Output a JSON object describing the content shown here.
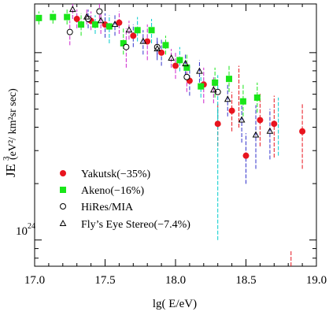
{
  "chart_data": {
    "type": "scatter",
    "title": "",
    "xlabel": "lg( E/eV)",
    "ylabel_main": "JE",
    "ylabel_sup": "3",
    "ylabel_units": "(eV²/ km²sr sec)",
    "y_tick_label": "10",
    "y_tick_label_sup": "24",
    "xlim": [
      17.0,
      19.0
    ],
    "ylim_log10": [
      23.86,
      25.26
    ],
    "yscale": "log",
    "x_ticks": [
      17.0,
      17.5,
      18.0,
      18.5,
      19.0
    ],
    "x_tick_labels": [
      "17.0",
      "17.5",
      "18.0",
      "18.5",
      "19.0"
    ],
    "legend_position": "lower-left",
    "legend": [
      {
        "label": "Yakutsk(−35%)",
        "marker": "filled-circle",
        "color": "#e8141e"
      },
      {
        "label": "Akeno(−16%)",
        "marker": "filled-square",
        "color": "#19e619"
      },
      {
        "label": "HiRes/MIA",
        "marker": "open-circle",
        "color": "#000000"
      },
      {
        "label": "Fly’s Eye Stereo(−7.4%)",
        "marker": "open-triangle",
        "color": "#000000"
      }
    ],
    "series": [
      {
        "name": "Yakutsk(−35%)",
        "marker": "filled-circle",
        "color": "#e8141e",
        "points": [
          {
            "x": 17.3,
            "y": 25.18,
            "lo": 25.13,
            "hi": 25.23,
            "ecolor": "#cc22cc"
          },
          {
            "x": 17.4,
            "y": 25.17,
            "lo": 25.12,
            "hi": 25.22,
            "ecolor": "#cc22cc"
          },
          {
            "x": 17.5,
            "y": 25.15,
            "lo": 25.08,
            "hi": 25.21,
            "ecolor": "#3333cc"
          },
          {
            "x": 17.6,
            "y": 25.16,
            "lo": 25.1,
            "hi": 25.22,
            "ecolor": "#cc22cc"
          },
          {
            "x": 17.7,
            "y": 25.09,
            "lo": 25.03,
            "hi": 25.15,
            "ecolor": "#3333cc"
          },
          {
            "x": 17.8,
            "y": 25.06,
            "lo": 24.96,
            "hi": 25.15,
            "ecolor": "#cc22cc"
          },
          {
            "x": 17.9,
            "y": 25.0,
            "lo": 24.93,
            "hi": 25.07,
            "ecolor": "#3333cc"
          },
          {
            "x": 18.0,
            "y": 24.93,
            "lo": 24.86,
            "hi": 25.0,
            "ecolor": "#cc22cc"
          },
          {
            "x": 18.1,
            "y": 24.85,
            "lo": 24.77,
            "hi": 24.93,
            "ecolor": "#3333cc"
          },
          {
            "x": 18.2,
            "y": 24.83,
            "lo": 24.73,
            "hi": 24.92,
            "ecolor": "#cc22cc"
          },
          {
            "x": 18.3,
            "y": 24.62,
            "lo": 24.5,
            "hi": 24.73,
            "ecolor": "#e8141e"
          },
          {
            "x": 18.4,
            "y": 24.69,
            "lo": 24.58,
            "hi": 24.79,
            "ecolor": "#e8141e"
          },
          {
            "x": 18.5,
            "y": 24.45,
            "lo": 24.3,
            "hi": 24.57,
            "ecolor": "#3333cc"
          },
          {
            "x": 18.6,
            "y": 24.64,
            "lo": 24.5,
            "hi": 24.78,
            "ecolor": "#e8141e"
          },
          {
            "x": 18.7,
            "y": 24.62,
            "lo": 24.44,
            "hi": 24.77,
            "ecolor": "#e8141e"
          },
          {
            "x": 18.9,
            "y": 24.58,
            "lo": 24.38,
            "hi": 24.73,
            "ecolor": "#e8141e"
          }
        ]
      },
      {
        "name": "Akeno(−16%)",
        "marker": "filled-square",
        "color": "#19e619",
        "points": [
          {
            "x": 17.03,
            "y": 25.185,
            "lo": 25.15,
            "hi": 25.22,
            "ecolor": "#19e619"
          },
          {
            "x": 17.13,
            "y": 25.19,
            "lo": 25.155,
            "hi": 25.225,
            "ecolor": "#19e619"
          },
          {
            "x": 17.23,
            "y": 25.19,
            "lo": 25.15,
            "hi": 25.23,
            "ecolor": "#19e619"
          },
          {
            "x": 17.33,
            "y": 25.15,
            "lo": 25.09,
            "hi": 25.21,
            "ecolor": "#19e619"
          },
          {
            "x": 17.43,
            "y": 25.15,
            "lo": 25.1,
            "hi": 25.2,
            "ecolor": "#00cccc"
          },
          {
            "x": 17.53,
            "y": 25.14,
            "lo": 25.05,
            "hi": 25.2,
            "ecolor": "#00cccc"
          },
          {
            "x": 17.63,
            "y": 25.05,
            "lo": 24.99,
            "hi": 25.13,
            "ecolor": "#19e619"
          },
          {
            "x": 17.73,
            "y": 25.12,
            "lo": 25.06,
            "hi": 25.19,
            "ecolor": "#00cccc"
          },
          {
            "x": 17.83,
            "y": 25.12,
            "lo": 25.05,
            "hi": 25.18,
            "ecolor": "#00cccc"
          },
          {
            "x": 17.93,
            "y": 25.04,
            "lo": 24.99,
            "hi": 25.09,
            "ecolor": "#19e619"
          },
          {
            "x": 18.03,
            "y": 24.96,
            "lo": 24.9,
            "hi": 25.03,
            "ecolor": "#00cccc"
          },
          {
            "x": 18.08,
            "y": 24.92,
            "lo": 24.85,
            "hi": 24.99,
            "ecolor": "#19e619"
          },
          {
            "x": 18.18,
            "y": 24.82,
            "lo": 24.76,
            "hi": 24.88,
            "ecolor": "#00cccc"
          },
          {
            "x": 18.28,
            "y": 24.84,
            "lo": 24.76,
            "hi": 24.92,
            "ecolor": "#19e619"
          },
          {
            "x": 18.38,
            "y": 24.86,
            "lo": 24.79,
            "hi": 24.93,
            "ecolor": "#19e619"
          },
          {
            "x": 18.48,
            "y": 24.74,
            "lo": 24.66,
            "hi": 24.83,
            "ecolor": "#19e619"
          },
          {
            "x": 18.58,
            "y": 24.76,
            "lo": 24.68,
            "hi": 24.84,
            "ecolor": "#19e619"
          }
        ]
      },
      {
        "name": "HiRes/MIA",
        "marker": "open-circle",
        "color": "#000000",
        "points": [
          {
            "x": 17.25,
            "y": 25.11,
            "lo": 25.04,
            "hi": 25.17,
            "ecolor": "#cc22cc"
          },
          {
            "x": 17.38,
            "y": 25.18,
            "lo": 25.13,
            "hi": 25.23,
            "ecolor": "#3333cc"
          },
          {
            "x": 17.46,
            "y": 25.22,
            "lo": 25.18,
            "hi": 25.26,
            "ecolor": "#cc22cc"
          },
          {
            "x": 17.65,
            "y": 25.03,
            "lo": 24.92,
            "hi": 25.13,
            "ecolor": "#cc22cc"
          },
          {
            "x": 17.87,
            "y": 25.03,
            "lo": 24.98,
            "hi": 25.08,
            "ecolor": "#3333cc"
          },
          {
            "x": 18.08,
            "y": 24.87,
            "lo": 24.79,
            "hi": 24.95,
            "ecolor": "#cc22cc"
          },
          {
            "x": 18.3,
            "y": 24.79,
            "lo": 24.6,
            "hi": 24.88,
            "ecolor": "#00cccc"
          }
        ]
      },
      {
        "name": "Fly’s Eye Stereo(−7.4%)",
        "marker": "open-triangle",
        "color": "#000000",
        "points": [
          {
            "x": 17.27,
            "y": 25.23,
            "lo": 25.18,
            "hi": 25.26,
            "ecolor": "#cc22cc"
          },
          {
            "x": 17.37,
            "y": 25.19,
            "lo": 25.15,
            "hi": 25.23,
            "ecolor": "#cc22cc"
          },
          {
            "x": 17.47,
            "y": 25.17,
            "lo": 25.1,
            "hi": 25.23,
            "ecolor": "#cc22cc"
          },
          {
            "x": 17.57,
            "y": 25.15,
            "lo": 25.09,
            "hi": 25.2,
            "ecolor": "#3333cc"
          },
          {
            "x": 17.67,
            "y": 25.12,
            "lo": 25.07,
            "hi": 25.17,
            "ecolor": "#cc22cc"
          },
          {
            "x": 17.77,
            "y": 25.06,
            "lo": 24.99,
            "hi": 25.12,
            "ecolor": "#3333cc"
          },
          {
            "x": 17.87,
            "y": 25.02,
            "lo": 24.96,
            "hi": 25.07,
            "ecolor": "#3333cc"
          },
          {
            "x": 17.97,
            "y": 24.97,
            "lo": 24.92,
            "hi": 25.02,
            "ecolor": "#cc22cc"
          },
          {
            "x": 18.07,
            "y": 24.94,
            "lo": 24.88,
            "hi": 24.99,
            "ecolor": "#3333cc"
          },
          {
            "x": 18.17,
            "y": 24.9,
            "lo": 24.84,
            "hi": 24.96,
            "ecolor": "#3333cc"
          },
          {
            "x": 18.27,
            "y": 24.8,
            "lo": 24.73,
            "hi": 24.87,
            "ecolor": "#cc22cc"
          },
          {
            "x": 18.37,
            "y": 24.75,
            "lo": 24.66,
            "hi": 24.83,
            "ecolor": "#3333cc"
          },
          {
            "x": 18.47,
            "y": 24.64,
            "lo": 24.52,
            "hi": 24.75,
            "ecolor": "#3333cc"
          },
          {
            "x": 18.57,
            "y": 24.56,
            "lo": 24.38,
            "hi": 24.72,
            "ecolor": "#3333cc"
          },
          {
            "x": 18.67,
            "y": 24.58,
            "lo": 24.43,
            "hi": 24.7,
            "ecolor": "#3333cc"
          }
        ]
      }
    ],
    "extra_error_bars": [
      {
        "x": 18.3,
        "lo": 24.0,
        "hi": 24.7,
        "ecolor": "#00cccc"
      },
      {
        "x": 18.45,
        "lo": 24.6,
        "hi": 24.93,
        "ecolor": "#e8141e"
      },
      {
        "x": 18.73,
        "lo": 24.45,
        "hi": 24.76,
        "ecolor": "#00cccc"
      },
      {
        "x": 18.82,
        "lo": 23.86,
        "hi": 23.94,
        "ecolor": "#e8141e"
      }
    ]
  }
}
